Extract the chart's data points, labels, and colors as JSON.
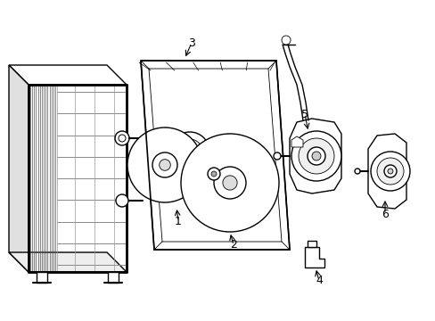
{
  "bg_color": "#ffffff",
  "line_color": "#000000",
  "lw": 1.0,
  "tlw": 0.6,
  "fig_width": 4.89,
  "fig_height": 3.6
}
